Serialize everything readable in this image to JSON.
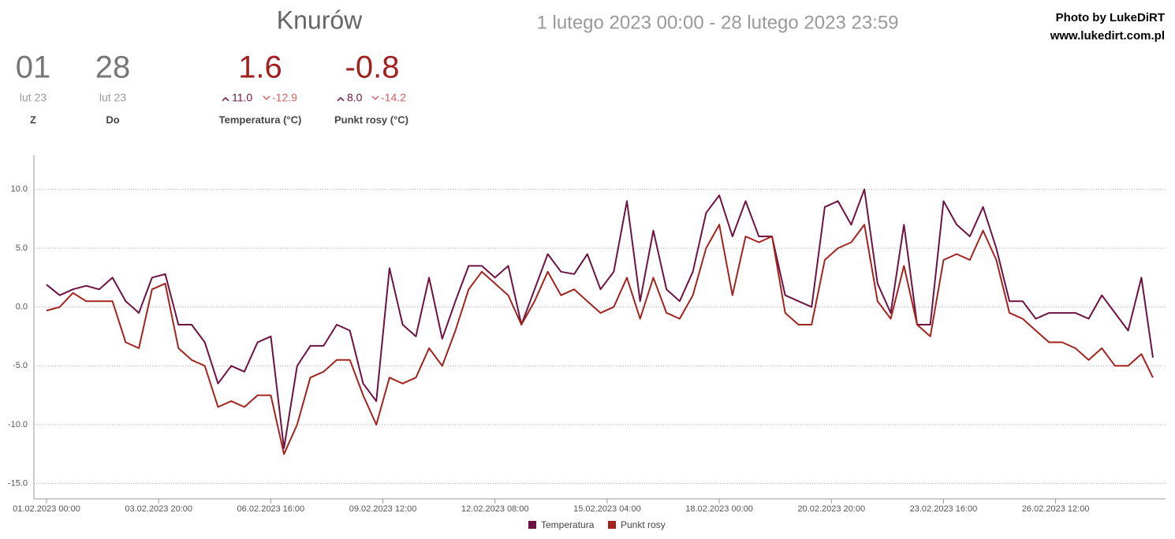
{
  "header": {
    "title": "Knurów",
    "range": "1 lutego 2023 00:00 - 28 lutego 2023 23:59",
    "credit": "Photo by LukeDiRT",
    "site": "www.lukedirt.com.pl"
  },
  "stats": [
    {
      "value": "01",
      "sub": "lut 23",
      "label": "Z"
    },
    {
      "value": "28",
      "sub": "lut 23",
      "label": "Do"
    },
    {
      "value": "1.6",
      "max": "11.0",
      "min": "-12.9",
      "label": "Temperatura (°C)"
    },
    {
      "value": "-0.8",
      "max": "8.0",
      "min": "-14.2",
      "label": "Punkt rosy (°C)"
    }
  ],
  "chart_data": {
    "type": "line",
    "x": [
      "01.02.2023 00:00",
      "01.02.2023 08:00",
      "01.02.2023 16:00",
      "02.02.2023 00:00",
      "02.02.2023 08:00",
      "02.02.2023 16:00",
      "03.02.2023 00:00",
      "03.02.2023 08:00",
      "03.02.2023 16:00",
      "04.02.2023 00:00",
      "04.02.2023 08:00",
      "04.02.2023 16:00",
      "05.02.2023 00:00",
      "05.02.2023 08:00",
      "05.02.2023 16:00",
      "06.02.2023 00:00",
      "06.02.2023 08:00",
      "06.02.2023 16:00",
      "07.02.2023 00:00",
      "07.02.2023 08:00",
      "07.02.2023 16:00",
      "08.02.2023 00:00",
      "08.02.2023 08:00",
      "08.02.2023 16:00",
      "09.02.2023 00:00",
      "09.02.2023 08:00",
      "09.02.2023 16:00",
      "10.02.2023 00:00",
      "10.02.2023 08:00",
      "10.02.2023 16:00",
      "11.02.2023 00:00",
      "11.02.2023 08:00",
      "11.02.2023 16:00",
      "12.02.2023 00:00",
      "12.02.2023 08:00",
      "12.02.2023 16:00",
      "13.02.2023 00:00",
      "13.02.2023 08:00",
      "13.02.2023 16:00",
      "14.02.2023 00:00",
      "14.02.2023 08:00",
      "14.02.2023 16:00",
      "15.02.2023 00:00",
      "15.02.2023 08:00",
      "15.02.2023 16:00",
      "16.02.2023 00:00",
      "16.02.2023 08:00",
      "16.02.2023 16:00",
      "17.02.2023 00:00",
      "17.02.2023 08:00",
      "17.02.2023 16:00",
      "18.02.2023 00:00",
      "18.02.2023 08:00",
      "18.02.2023 16:00",
      "19.02.2023 00:00",
      "19.02.2023 08:00",
      "19.02.2023 16:00",
      "20.02.2023 00:00",
      "20.02.2023 08:00",
      "20.02.2023 16:00",
      "21.02.2023 00:00",
      "21.02.2023 08:00",
      "21.02.2023 16:00",
      "22.02.2023 00:00",
      "22.02.2023 08:00",
      "22.02.2023 16:00",
      "23.02.2023 00:00",
      "23.02.2023 08:00",
      "23.02.2023 16:00",
      "24.02.2023 00:00",
      "24.02.2023 08:00",
      "24.02.2023 16:00",
      "25.02.2023 00:00",
      "25.02.2023 08:00",
      "25.02.2023 16:00",
      "26.02.2023 00:00",
      "26.02.2023 08:00",
      "26.02.2023 16:00",
      "27.02.2023 00:00",
      "27.02.2023 08:00",
      "27.02.2023 16:00",
      "28.02.2023 00:00",
      "28.02.2023 08:00",
      "28.02.2023 16:00",
      "28.02.2023 23:00"
    ],
    "series": [
      {
        "name": "Temperatura",
        "color": "#6e1243",
        "values": [
          1.9,
          1.0,
          1.5,
          1.8,
          1.5,
          2.5,
          0.5,
          -0.5,
          2.5,
          2.8,
          -1.5,
          -1.5,
          -3,
          -6.5,
          -5,
          -5.5,
          -3,
          -2.5,
          -12,
          -5,
          -3.3,
          -3.3,
          -1.5,
          -2,
          -6.5,
          -8,
          3.3,
          -1.5,
          -2.5,
          2.5,
          -2.7,
          0.5,
          3.5,
          3.5,
          2.5,
          3.5,
          -1.5,
          1.5,
          4.5,
          3.0,
          2.8,
          4.5,
          1.5,
          3.0,
          9.0,
          0.5,
          6.5,
          1.5,
          0.5,
          3.0,
          8.0,
          9.5,
          6.0,
          9.0,
          6.0,
          6.0,
          1.0,
          0.5,
          0,
          8.5,
          9.0,
          7.0,
          10.0,
          2.0,
          -0.5,
          7.0,
          -1.5,
          -1.5,
          9.0,
          7.0,
          6.0,
          8.5,
          5.0,
          0.5,
          0.5,
          -1.0,
          -0.5,
          -0.5,
          -0.5,
          -1.0,
          1.0,
          -0.5,
          -2.0,
          2.5,
          -4.3
        ]
      },
      {
        "name": "Punkt rosy",
        "color": "#a3241f",
        "values": [
          -0.3,
          0,
          1.2,
          0.5,
          0.5,
          0.5,
          -3,
          -3.5,
          1.5,
          2.0,
          -3.5,
          -4.5,
          -5,
          -8.5,
          -8,
          -8.5,
          -7.5,
          -7.5,
          -12.5,
          -10,
          -6,
          -5.5,
          -4.5,
          -4.5,
          -7.5,
          -10,
          -6,
          -6.5,
          -6,
          -3.5,
          -5,
          -2,
          1.5,
          3.0,
          2.0,
          1.0,
          -1.5,
          0.5,
          3.0,
          1.0,
          1.5,
          0.5,
          -0.5,
          0,
          2.5,
          -1,
          2.5,
          -0.5,
          -1.0,
          1.0,
          5.0,
          7.0,
          1.0,
          6.0,
          5.5,
          6.0,
          -0.5,
          -1.5,
          -1.5,
          4.0,
          5.0,
          5.5,
          7.0,
          0.5,
          -1.0,
          3.5,
          -1.5,
          -2.5,
          4.0,
          4.5,
          4.0,
          6.5,
          4.0,
          -0.5,
          -1.0,
          -2.0,
          -3.0,
          -3.0,
          -3.5,
          -4.5,
          -3.5,
          -5.0,
          -5.0,
          -4.0,
          -6.0
        ]
      }
    ],
    "xlim": [
      "01.02.2023 00:00",
      "28.02.2023 23:00"
    ],
    "xticks": [
      "01.02.2023 00:00",
      "03.02.2023 20:00",
      "06.02.2023 16:00",
      "09.02.2023 12:00",
      "12.02.2023 08:00",
      "15.02.2023 04:00",
      "18.02.2023 00:00",
      "20.02.2023 20:00",
      "23.02.2023 16:00",
      "26.02.2023 12:00"
    ],
    "ylim": [
      -16.3,
      12.9
    ],
    "yticks": [
      {
        "value": -15,
        "label": "-15.0"
      },
      {
        "value": -10,
        "label": "-10.0"
      },
      {
        "value": -5,
        "label": "-5.0"
      },
      {
        "value": 0,
        "label": "0.0"
      },
      {
        "value": 5,
        "label": "5.0"
      },
      {
        "value": 10,
        "label": "10.0"
      }
    ],
    "grid": true
  }
}
